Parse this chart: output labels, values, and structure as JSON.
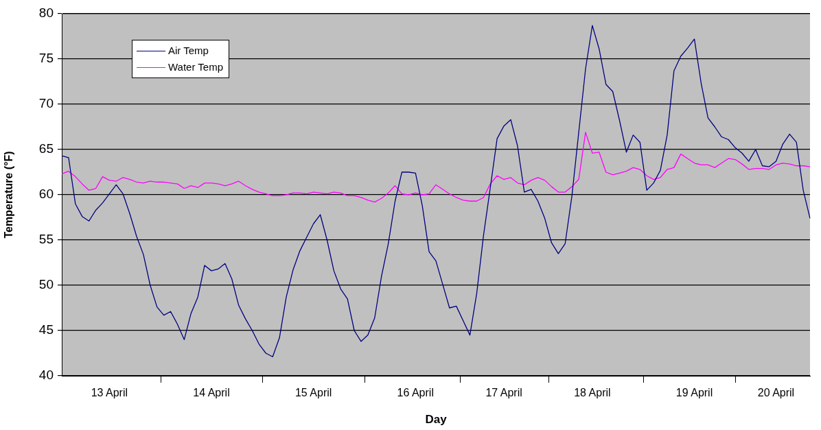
{
  "chart_data": {
    "type": "line",
    "xlabel": "Day",
    "ylabel": "Temperature (°F)",
    "categories": [
      null,
      null,
      null,
      null,
      null,
      null,
      null,
      "13 April",
      null,
      null,
      null,
      null,
      null,
      null,
      null,
      null,
      null,
      null,
      null,
      null,
      null,
      null,
      "14 April",
      null,
      null,
      null,
      null,
      null,
      null,
      null,
      null,
      null,
      null,
      null,
      null,
      null,
      null,
      "15 April",
      null,
      null,
      null,
      null,
      null,
      null,
      null,
      null,
      null,
      null,
      null,
      null,
      null,
      null,
      "16 April",
      null,
      null,
      null,
      null,
      null,
      null,
      null,
      null,
      null,
      null,
      null,
      null,
      "17 April",
      null,
      null,
      null,
      null,
      null,
      null,
      null,
      null,
      null,
      null,
      null,
      null,
      "18 April",
      null,
      null,
      null,
      null,
      null,
      null,
      null,
      null,
      null,
      null,
      null,
      null,
      null,
      null,
      "19 April",
      null,
      null,
      null,
      null,
      null,
      null,
      null,
      null,
      null,
      null,
      null,
      "20 April",
      null,
      null,
      null,
      null,
      null
    ],
    "ylim": [
      40,
      80
    ],
    "yticks": [
      40,
      45,
      50,
      55,
      60,
      65,
      70,
      75,
      80
    ],
    "grid": "y",
    "legend": "top left",
    "line_style": "solid",
    "marker": "none",
    "series": [
      {
        "name": "Air Temp",
        "color": "#000080",
        "values": [
          64.3,
          64.1,
          59.0,
          57.6,
          57.1,
          58.3,
          59.1,
          60.1,
          61.1,
          60.1,
          57.9,
          55.4,
          53.4,
          50.0,
          47.6,
          46.7,
          47.1,
          45.7,
          44.0,
          46.9,
          48.7,
          52.2,
          51.6,
          51.8,
          52.4,
          50.7,
          47.8,
          46.3,
          45.0,
          43.5,
          42.5,
          42.1,
          44.2,
          48.7,
          51.7,
          53.8,
          55.3,
          56.8,
          57.8,
          55.0,
          51.6,
          49.6,
          48.5,
          45.0,
          43.8,
          44.5,
          46.4,
          51.0,
          54.6,
          59.3,
          62.5,
          62.5,
          62.4,
          58.8,
          53.7,
          52.7,
          50.1,
          47.5,
          47.7,
          46.1,
          44.5,
          49.1,
          55.5,
          60.8,
          66.2,
          67.6,
          68.3,
          65.4,
          60.3,
          60.6,
          59.3,
          57.4,
          54.7,
          53.5,
          54.6,
          59.9,
          66.9,
          73.9,
          78.7,
          76.1,
          72.2,
          71.4,
          68.2,
          64.7,
          66.6,
          65.8,
          60.5,
          61.3,
          62.7,
          66.6,
          73.7,
          75.3,
          76.2,
          77.2,
          72.3,
          68.5,
          67.5,
          66.4,
          66.1,
          65.2,
          64.6,
          63.7,
          65.0,
          63.2,
          63.1,
          63.7,
          65.6,
          66.7,
          65.8,
          60.5,
          57.4
        ]
      },
      {
        "name": "Water Temp",
        "color": "#ff00ff",
        "values": [
          62.3,
          62.6,
          62.0,
          61.2,
          60.5,
          60.7,
          62.0,
          61.6,
          61.5,
          61.9,
          61.7,
          61.4,
          61.3,
          61.5,
          61.4,
          61.4,
          61.3,
          61.2,
          60.7,
          61.0,
          60.8,
          61.3,
          61.3,
          61.2,
          61.0,
          61.2,
          61.5,
          61.0,
          60.6,
          60.3,
          60.1,
          59.9,
          59.9,
          60.0,
          60.2,
          60.2,
          60.1,
          60.3,
          60.2,
          60.1,
          60.3,
          60.2,
          59.9,
          59.9,
          59.7,
          59.4,
          59.2,
          59.6,
          60.2,
          61.0,
          60.1,
          60.0,
          60.2,
          60.0,
          60.1,
          61.1,
          60.6,
          60.1,
          59.7,
          59.4,
          59.3,
          59.3,
          59.7,
          61.2,
          62.1,
          61.7,
          61.9,
          61.3,
          61.1,
          61.6,
          61.9,
          61.6,
          60.9,
          60.3,
          60.3,
          60.9,
          61.7,
          66.9,
          64.6,
          64.7,
          62.5,
          62.2,
          62.4,
          62.6,
          63.0,
          62.8,
          62.1,
          61.7,
          61.9,
          62.8,
          63.0,
          64.5,
          64.0,
          63.5,
          63.3,
          63.3,
          63.0,
          63.5,
          64.0,
          63.9,
          63.4,
          62.8,
          62.9,
          62.9,
          62.8,
          63.3,
          63.5,
          63.4,
          63.2,
          63.2,
          63.1
        ]
      }
    ]
  }
}
